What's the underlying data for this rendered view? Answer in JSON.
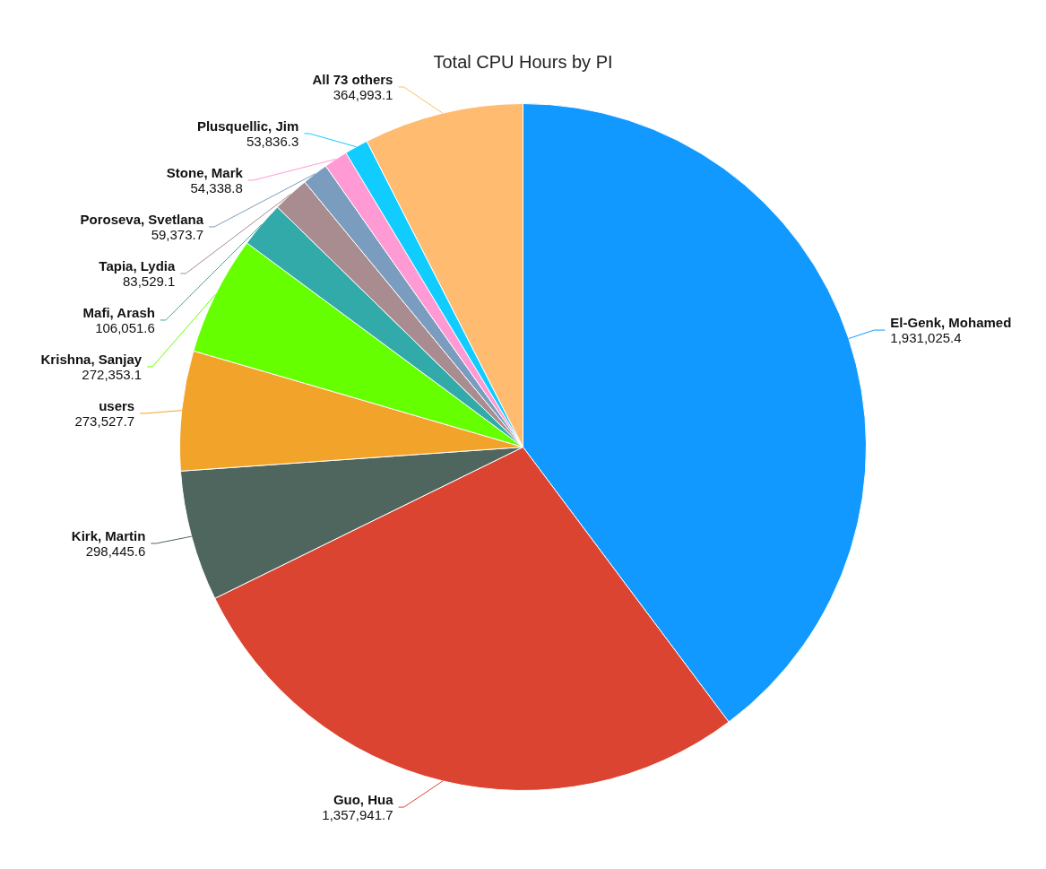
{
  "chart_data": {
    "type": "pie",
    "title": "Total CPU Hours by PI",
    "categories": [
      "El-Genk, Mohamed",
      "Guo, Hua",
      "Kirk, Martin",
      "users",
      "Krishna, Sanjay",
      "Mafi, Arash",
      "Tapia, Lydia",
      "Poroseva, Svetlana",
      "Stone, Mark",
      "Plusquellic, Jim",
      "All 73 others"
    ],
    "values": [
      1931025.4,
      1357941.7,
      298445.6,
      273527.7,
      272353.1,
      106051.6,
      83529.1,
      59373.7,
      54338.8,
      53836.3,
      364993.1
    ],
    "colors": [
      "#1199ff",
      "#db4430",
      "#4e665d",
      "#f2a329",
      "#66ff00",
      "#33aaaa",
      "#a88c90",
      "#7a9cbe",
      "#ff9ad4",
      "#11ccff",
      "#ffbb70"
    ],
    "value_labels": [
      "1,931,025.4",
      "1,357,941.7",
      "298,445.6",
      "273,527.7",
      "272,353.1",
      "106,051.6",
      "83,529.1",
      "59,373.7",
      "54,338.8",
      "53,836.3",
      "364,993.1"
    ],
    "legend": false
  }
}
